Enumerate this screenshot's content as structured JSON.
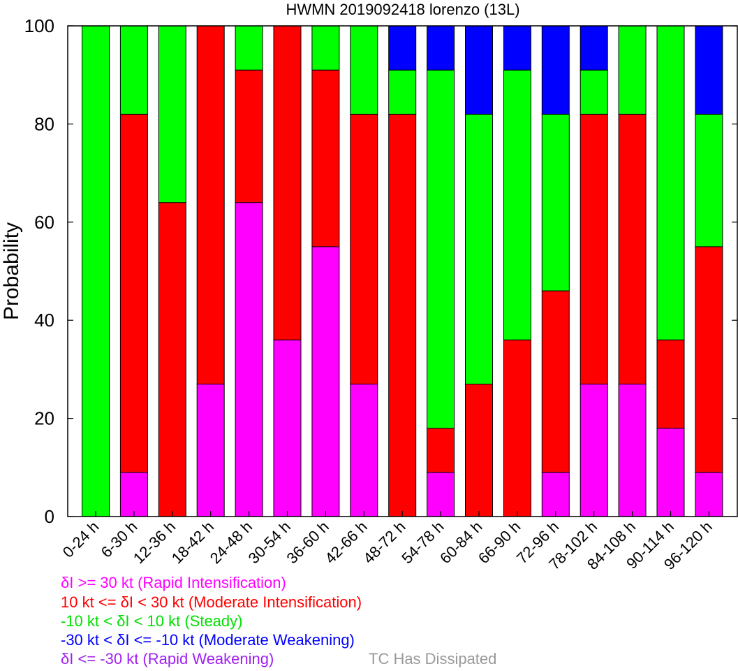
{
  "chart_data": {
    "type": "bar",
    "stacked": true,
    "title": "HWMN 2019092418 lorenzo (13L)",
    "xlabel": "",
    "ylabel": "Probability",
    "ylim": [
      0,
      100
    ],
    "yticks": [
      0,
      20,
      40,
      60,
      80,
      100
    ],
    "grid": false,
    "legend_placement": "bottom",
    "categories": [
      "0-24 h",
      "6-30 h",
      "12-36 h",
      "18-42 h",
      "24-48 h",
      "30-54 h",
      "36-60 h",
      "42-66 h",
      "48-72 h",
      "54-78 h",
      "60-84 h",
      "66-90 h",
      "72-96 h",
      "78-102 h",
      "84-108 h",
      "90-114 h",
      "96-120 h"
    ],
    "series": [
      {
        "name": "δI >= 30 kt (Rapid Intensification)",
        "color": "#ff00ff",
        "values": [
          0,
          9,
          0,
          27,
          64,
          36,
          55,
          27,
          0,
          9,
          0,
          0,
          9,
          27,
          27,
          18,
          9
        ]
      },
      {
        "name": "10 kt <= δI < 30 kt (Moderate Intensification)",
        "color": "#ff0000",
        "values": [
          0,
          73,
          64,
          73,
          27,
          64,
          36,
          55,
          82,
          9,
          27,
          36,
          37,
          55,
          55,
          18,
          46
        ]
      },
      {
        "name": "-10 kt < δI < 10 kt (Steady)",
        "color": "#00ff00",
        "values": [
          100,
          18,
          36,
          0,
          9,
          0,
          9,
          18,
          9,
          73,
          55,
          55,
          36,
          9,
          18,
          64,
          27
        ]
      },
      {
        "name": "-30 kt < δI <= -10 kt (Moderate Weakening)",
        "color": "#0000ff",
        "values": [
          0,
          0,
          0,
          0,
          0,
          0,
          0,
          0,
          9,
          9,
          18,
          9,
          18,
          9,
          0,
          0,
          18
        ]
      },
      {
        "name": "δI <= -30 kt (Rapid Weakening)",
        "color": "#a020f0",
        "values": [
          0,
          0,
          0,
          0,
          0,
          0,
          0,
          0,
          0,
          0,
          0,
          0,
          0,
          0,
          0,
          0,
          0
        ]
      },
      {
        "name": "TC Has Dissipated",
        "color": "#999999",
        "values": [
          0,
          0,
          0,
          0,
          0,
          0,
          0,
          0,
          0,
          0,
          0,
          0,
          0,
          0,
          0,
          0,
          0
        ]
      }
    ]
  }
}
